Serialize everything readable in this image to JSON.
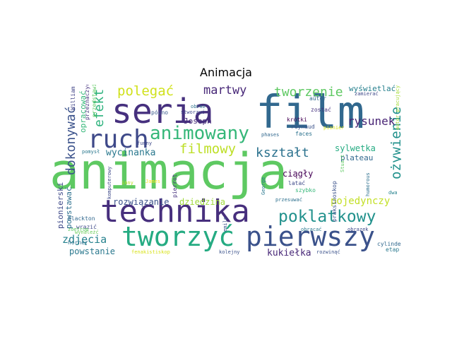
{
  "title": "Animacja",
  "words": [
    {
      "text": "animacja",
      "color": "#5ec962"
    },
    {
      "text": "film",
      "color": "#31688e"
    },
    {
      "text": "technika",
      "color": "#472f7d"
    },
    {
      "text": "seria",
      "color": "#46307e"
    },
    {
      "text": "tworzyć",
      "color": "#25ab82"
    },
    {
      "text": "pierwszy",
      "color": "#3b528b"
    },
    {
      "text": "ruch",
      "color": "#3e4989"
    },
    {
      "text": "animowany",
      "color": "#35b779"
    },
    {
      "text": "poklatkowy",
      "color": "#21918c"
    },
    {
      "text": "polegać",
      "color": "#d0e11c"
    },
    {
      "text": "martwy",
      "color": "#482878"
    },
    {
      "text": "tworzenie",
      "color": "#5ec962"
    },
    {
      "text": "ożywienie",
      "color": "#21918c"
    },
    {
      "text": "filmowy",
      "color": "#bddf26"
    },
    {
      "text": "kształt",
      "color": "#2c728e"
    },
    {
      "text": "dokonywać",
      "color": "#3b528b"
    },
    {
      "text": "efekt",
      "color": "#2db27d"
    },
    {
      "text": "rysunek",
      "color": "#482475"
    },
    {
      "text": "pojedynczy",
      "color": "#c2df23"
    },
    {
      "text": "zdjęcia",
      "color": "#26828e"
    },
    {
      "text": "kukiełka",
      "color": "#482878"
    },
    {
      "text": "wycinanka",
      "color": "#2a788e"
    },
    {
      "text": "sylwetka",
      "color": "#25ab82"
    },
    {
      "text": "plateau",
      "color": "#31688e"
    },
    {
      "text": "ciągły",
      "color": "#440154"
    },
    {
      "text": "rozwiązanie",
      "color": "#3b528b"
    },
    {
      "text": "dziedzina",
      "color": "#9fda3a"
    },
    {
      "text": "powstanie",
      "color": "#2a788e"
    },
    {
      "text": "wyświetlać",
      "color": "#27808e"
    },
    {
      "text": "opracować",
      "color": "#35b779"
    },
    {
      "text": "pionierski",
      "color": "#3e4989"
    },
    {
      "text": "powstawać",
      "color": "#2d708e"
    },
    {
      "text": "Joseph",
      "color": "#472c7a"
    },
    {
      "text": "praksinoskop",
      "color": "#3b528b"
    },
    {
      "text": "przedstawiać",
      "color": "#5ec962"
    },
    {
      "text": "przeznaczyć",
      "color": "#46327e"
    },
    {
      "text": "William",
      "color": "#414487"
    },
    {
      "text": "autor",
      "color": "#31688e"
    },
    {
      "text": "zamierać",
      "color": "#3e4989"
    },
    {
      "text": "autor pracujący",
      "color": "#a5db36"
    },
    {
      "text": "późno",
      "color": "#38598c"
    },
    {
      "text": "obraz",
      "color": "#2c728e"
    },
    {
      "text": "stworzyć",
      "color": "#3e4989"
    },
    {
      "text": "zostać",
      "color": "#46337f"
    },
    {
      "text": "krótki",
      "color": "#440154"
    },
    {
      "text": "reynaud",
      "color": "#3b528b"
    },
    {
      "text": "pionier",
      "color": "#d8e219"
    },
    {
      "text": "faces",
      "color": "#2c728e"
    },
    {
      "text": "funny",
      "color": "#3e4989"
    },
    {
      "text": "pomysł",
      "color": "#2a788e"
    },
    {
      "text": "Stuart",
      "color": "#5ec962"
    },
    {
      "text": "humorous",
      "color": "#2d708e"
    },
    {
      "text": "dwa",
      "color": "#26828e"
    },
    {
      "text": "latać",
      "color": "#3e4989"
    },
    {
      "text": "szybko",
      "color": "#35b779"
    },
    {
      "text": "inny",
      "color": "#bddf26"
    },
    {
      "text": "James",
      "color": "#fde725"
    },
    {
      "text": "pierrot",
      "color": "#46307e"
    },
    {
      "text": "George",
      "color": "#2a788e"
    },
    {
      "text": "komputerowy",
      "color": "#3e4989"
    },
    {
      "text": "phases",
      "color": "#31688e"
    },
    {
      "text": "przesuwać",
      "color": "#2d708e"
    },
    {
      "text": "blackton",
      "color": "#31688e"
    },
    {
      "text": "wrazić",
      "color": "#3e4989"
    },
    {
      "text": "wynależć",
      "color": "#6ccd5a"
    },
    {
      "text": "horner",
      "color": "#2c728e"
    },
    {
      "text": "zoetrop",
      "color": "#5ec962"
    },
    {
      "text": "emile",
      "color": "#3b528b"
    },
    {
      "text": "obracać",
      "color": "#2a788e"
    },
    {
      "text": "obrazek",
      "color": "#3e4989"
    },
    {
      "text": "cylinder",
      "color": "#31688e"
    },
    {
      "text": "etap",
      "color": "#2a788e"
    },
    {
      "text": "fenakistiskop",
      "color": "#d8e219"
    },
    {
      "text": "kolejny",
      "color": "#3b528b"
    },
    {
      "text": "rozwinąć",
      "color": "#3b528b"
    }
  ]
}
